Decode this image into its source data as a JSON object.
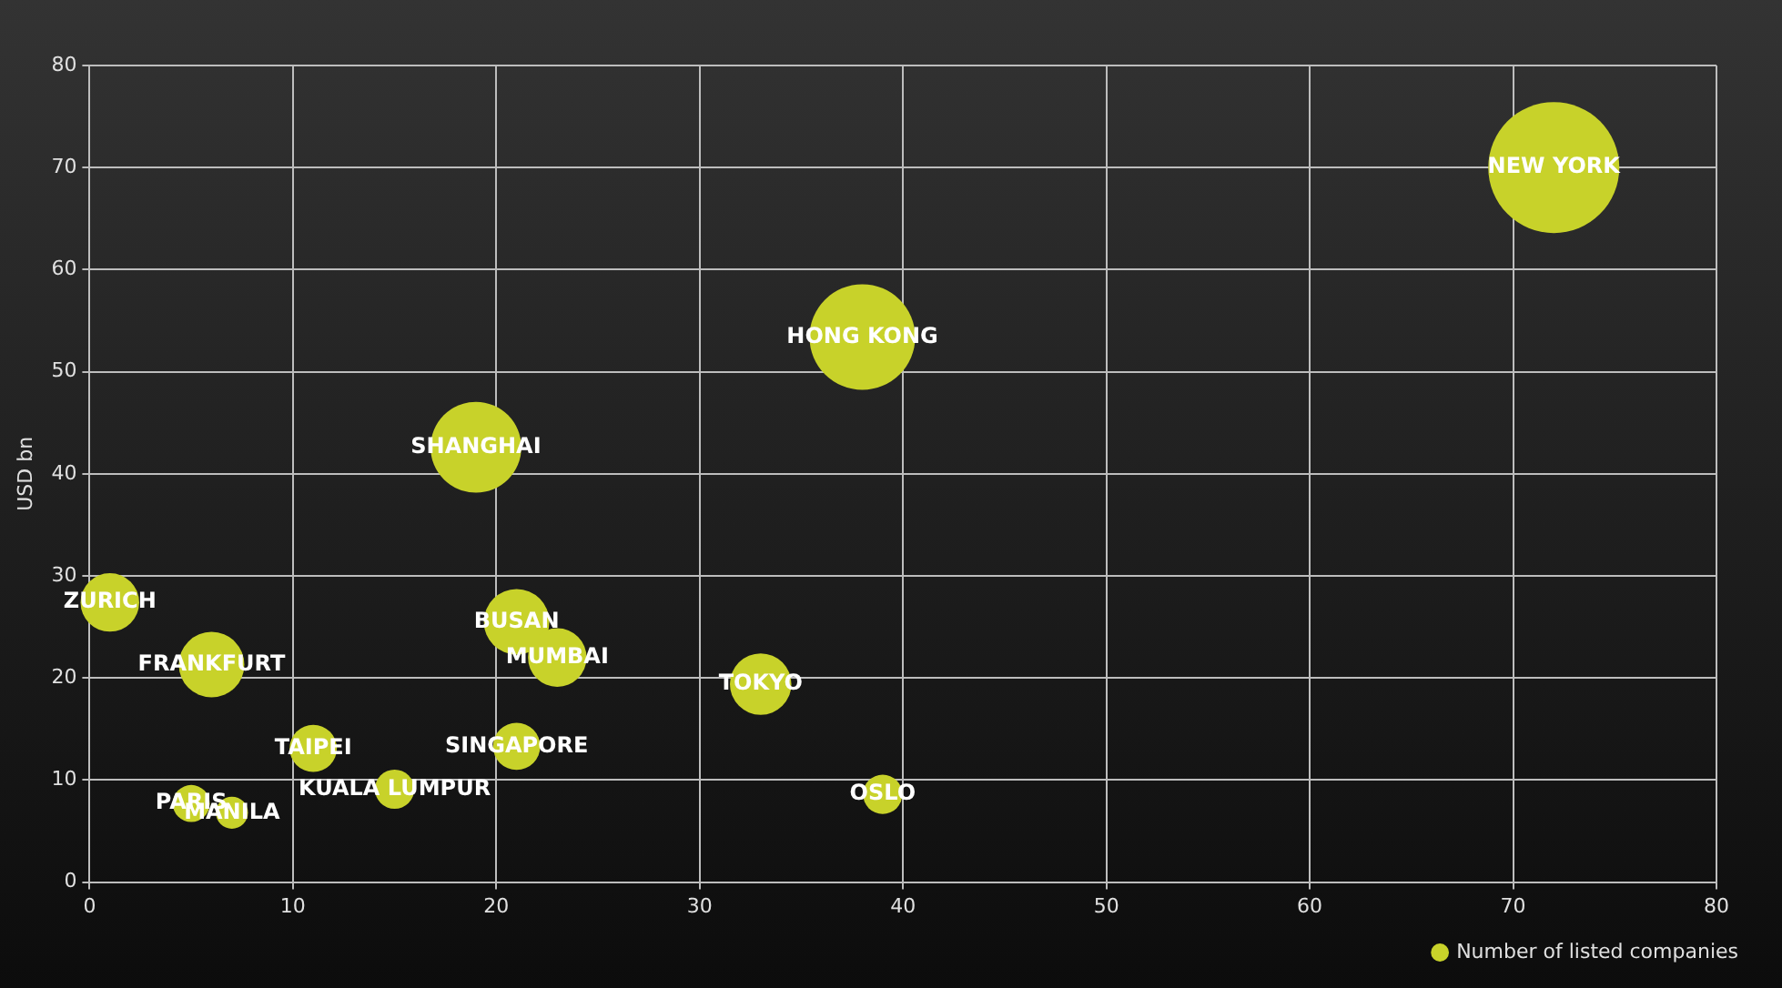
{
  "chart_data": {
    "type": "bubble",
    "ylabel": "USD bn",
    "x": [
      1,
      6,
      5,
      7,
      11,
      15,
      21,
      21,
      23,
      33,
      39,
      38,
      19,
      72
    ],
    "series": [
      {
        "name": "Number of listed companies",
        "color": "#c8d22a",
        "values": [
          27.4,
          21.3,
          7.7,
          6.8,
          13.1,
          9.1,
          13.3,
          25.5,
          22,
          19.4,
          8.6,
          53.4,
          42.6,
          70
        ],
        "sizes": [
          0.2,
          0.25,
          0.08,
          0.06,
          0.13,
          0.09,
          0.13,
          0.25,
          0.2,
          0.22,
          0.09,
          0.65,
          0.48,
          1
        ]
      }
    ],
    "annotations": [
      {
        "text": "ZURICH",
        "x": 1,
        "y": 27.4
      },
      {
        "text": "FRANKFURT",
        "x": 6,
        "y": 21.3
      },
      {
        "text": "PARIS",
        "x": 5,
        "y": 7.7
      },
      {
        "text": "MANILA",
        "x": 7,
        "y": 6.8
      },
      {
        "text": "TAIPEI",
        "x": 11,
        "y": 13.1
      },
      {
        "text": "KUALA LUMPUR",
        "x": 15,
        "y": 9.1
      },
      {
        "text": "SINGAPORE",
        "x": 21,
        "y": 13.3
      },
      {
        "text": "BUSAN",
        "x": 21,
        "y": 25.5
      },
      {
        "text": "MUMBAI",
        "x": 23,
        "y": 22
      },
      {
        "text": "TOKYO",
        "x": 33,
        "y": 19.4
      },
      {
        "text": "OSLO",
        "x": 39,
        "y": 8.6
      },
      {
        "text": "HONG KONG",
        "x": 38,
        "y": 53.4
      },
      {
        "text": "SHANGHAI",
        "x": 19,
        "y": 42.6
      },
      {
        "text": "NEW YORK",
        "x": 72,
        "y": 70
      }
    ],
    "xlim": [
      0,
      80
    ],
    "xticks": [
      0,
      10,
      20,
      30,
      40,
      50,
      60,
      70,
      80
    ],
    "ylim": [
      0,
      80
    ],
    "yticks": [
      0,
      10,
      20,
      30,
      40,
      50,
      60,
      70,
      80
    ],
    "grid": true,
    "legend": "bottom right"
  }
}
